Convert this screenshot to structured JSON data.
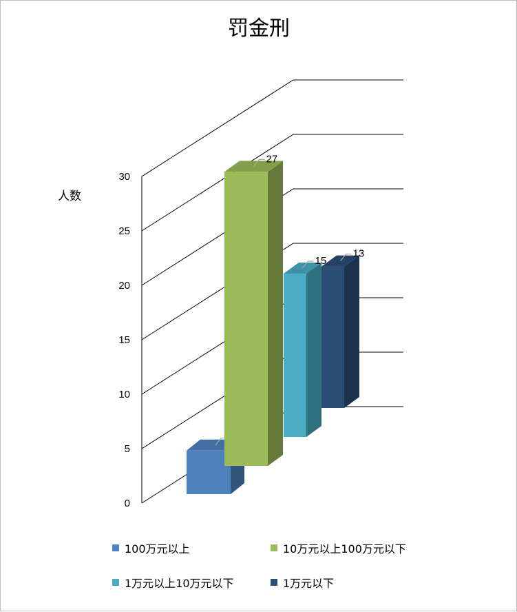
{
  "chart_data": {
    "type": "bar",
    "title": "罚金刑",
    "ylabel": "人数",
    "xlabel": "",
    "ylim": [
      0,
      30
    ],
    "yticks": [
      0,
      5,
      10,
      15,
      20,
      25,
      30
    ],
    "style": "3d-clustered-column",
    "grid": true,
    "legend_position": "bottom",
    "series": [
      {
        "name": "100万元以上",
        "value": 4,
        "color": "#4f81bd"
      },
      {
        "name": "10万元以上100万元以下",
        "value": 27,
        "color": "#9bbb59"
      },
      {
        "name": "1万元以上10万元以下",
        "value": 15,
        "color": "#4bacc6"
      },
      {
        "name": "1万元以下",
        "value": 13,
        "color": "#2c4d75"
      }
    ]
  }
}
